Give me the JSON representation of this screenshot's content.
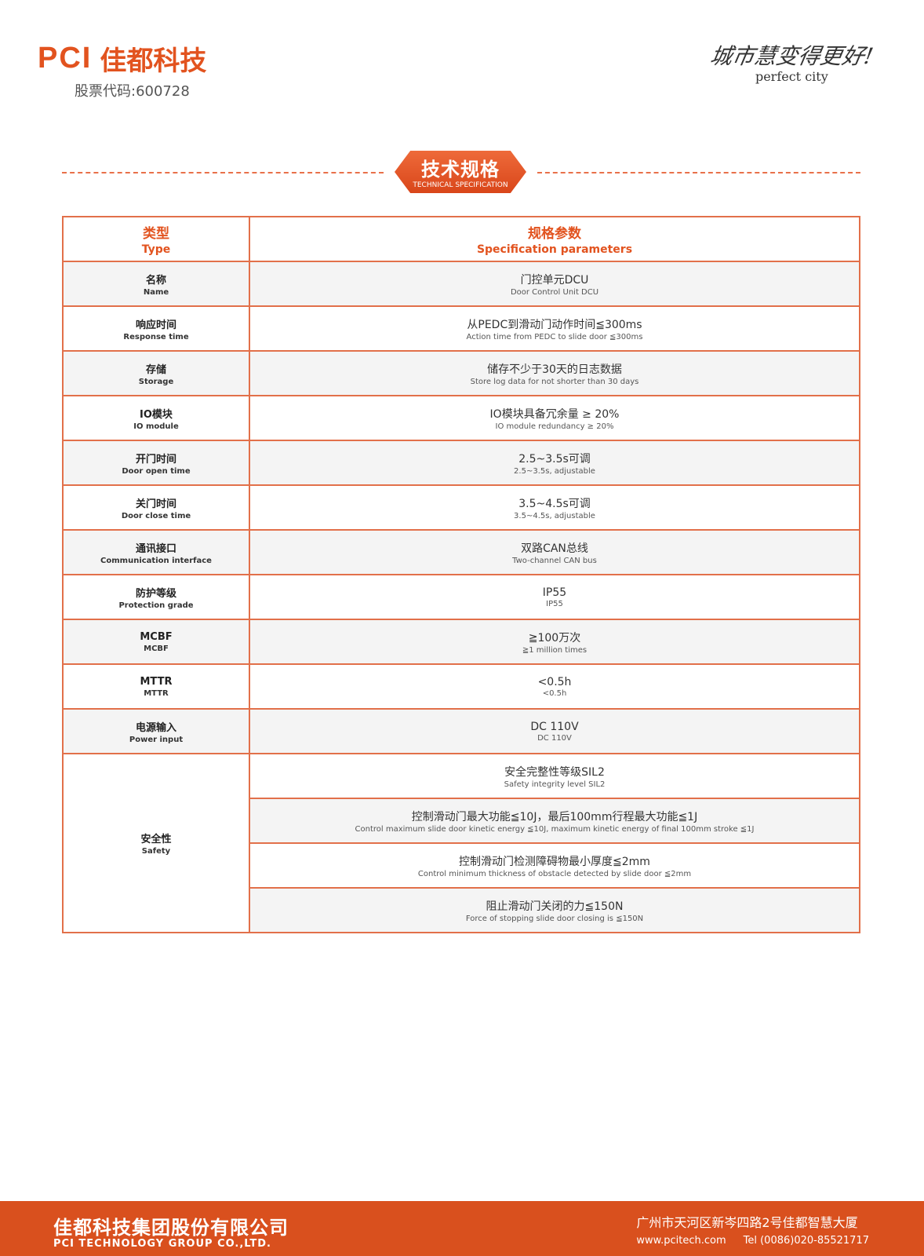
{
  "header": {
    "logo_en": "PCI",
    "logo_cn": "佳都科技",
    "stock": "股票代码:600728",
    "slogan_cn": "城市慧变得更好!",
    "slogan_en": "perfect city"
  },
  "section": {
    "title_cn": "技术规格",
    "title_en": "TECHNICAL SPECIFICATION"
  },
  "table": {
    "header": {
      "type_cn": "类型",
      "type_en": "Type",
      "spec_cn": "规格参数",
      "spec_en": "Specification parameters"
    },
    "rows": [
      {
        "type_cn": "名称",
        "type_en": "Name",
        "val_cn": "门控单元DCU",
        "val_en": "Door Control Unit DCU"
      },
      {
        "type_cn": "响应时间",
        "type_en": "Response time",
        "val_cn": "从PEDC到滑动门动作时间≦300ms",
        "val_en": "Action time from PEDC to slide door ≦300ms"
      },
      {
        "type_cn": "存储",
        "type_en": "Storage",
        "val_cn": "储存不少于30天的日志数据",
        "val_en": "Store log data for not shorter than 30 days"
      },
      {
        "type_cn": "IO模块",
        "type_en": "IO module",
        "val_cn": "IO模块具备冗余量 ≥ 20%",
        "val_en": "IO module redundancy ≥ 20%"
      },
      {
        "type_cn": "开门时间",
        "type_en": "Door open time",
        "val_cn": "2.5~3.5s可调",
        "val_en": "2.5~3.5s, adjustable"
      },
      {
        "type_cn": "关门时间",
        "type_en": "Door close time",
        "val_cn": "3.5~4.5s可调",
        "val_en": "3.5~4.5s, adjustable"
      },
      {
        "type_cn": "通讯接口",
        "type_en": "Communication interface",
        "val_cn": "双路CAN总线",
        "val_en": "Two-channel CAN bus"
      },
      {
        "type_cn": "防护等级",
        "type_en": "Protection grade",
        "val_cn": "IP55",
        "val_en": "IP55"
      },
      {
        "type_cn": "MCBF",
        "type_en": "MCBF",
        "val_cn": "≧100万次",
        "val_en": "≧1 million times"
      },
      {
        "type_cn": "MTTR",
        "type_en": "MTTR",
        "val_cn": "<0.5h",
        "val_en": "<0.5h"
      },
      {
        "type_cn": "电源输入",
        "type_en": "Power input",
        "val_cn": "DC 110V",
        "val_en": "DC 110V"
      }
    ],
    "safety": {
      "type_cn": "安全性",
      "type_en": "Safety",
      "items": [
        {
          "val_cn": "安全完整性等级SIL2",
          "val_en": "Safety integrity level SIL2"
        },
        {
          "val_cn": "控制滑动门最大功能≦10J，最后100mm行程最大功能≦1J",
          "val_en": "Control maximum slide door kinetic energy ≦10J, maximum kinetic energy of final 100mm stroke ≦1J"
        },
        {
          "val_cn": "控制滑动门检测障碍物最小厚度≦2mm",
          "val_en": "Control minimum thickness of obstacle detected by slide door ≦2mm"
        },
        {
          "val_cn": "阻止滑动门关闭的力≦150N",
          "val_en": "Force of stopping slide door closing is ≦150N"
        }
      ]
    }
  },
  "footer": {
    "company_cn": "佳都科技集团股份有限公司",
    "company_en": "PCI TECHNOLOGY GROUP CO.,LTD.",
    "address": "广州市天河区新岑四路2号佳都智慧大厦",
    "website": "www.pcitech.com",
    "tel": "Tel (0086)020-85521717"
  },
  "colors": {
    "accent": "#e2531f",
    "footer_bg": "#d9501e"
  }
}
